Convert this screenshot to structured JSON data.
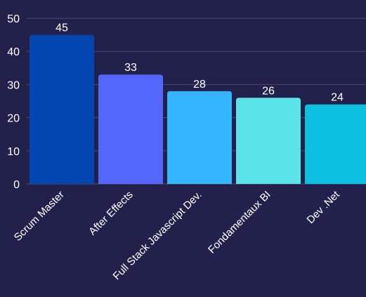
{
  "chart_data": {
    "type": "bar",
    "categories": [
      "Scrum Master",
      "After Effects",
      "Full Stack Javascript Dev.",
      "Fondamentaux BI",
      "Dev .Net"
    ],
    "values": [
      45,
      33,
      28,
      26,
      24
    ],
    "value_labels": [
      "45",
      "33",
      "28",
      "26",
      "24"
    ],
    "yticks": [
      "0",
      "10",
      "20",
      "30",
      "40",
      "50"
    ],
    "ylim": [
      0,
      50
    ],
    "grid": true,
    "legend": "none",
    "colors": [
      "#0346b0",
      "#5367fd",
      "#35b5fe",
      "#5be4e8",
      "#0bc1df"
    ],
    "background": "#22214b",
    "gridColor": "#4b4a72"
  }
}
